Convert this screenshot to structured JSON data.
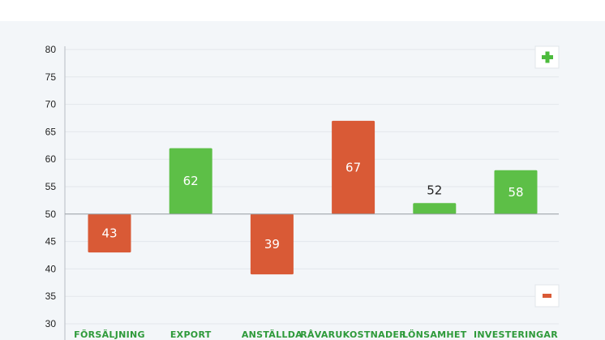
{
  "chart_data": {
    "type": "bar",
    "baseline": 50,
    "ylim": [
      30,
      80
    ],
    "yticks": [
      "80",
      "75",
      "70",
      "65",
      "60",
      "55",
      "50",
      "45",
      "40",
      "35",
      "30"
    ],
    "grid": true,
    "categories": [
      "FÖRSÄLJNING",
      "EXPORT",
      "ANSTÄLLDA",
      "RÅVARUKOSTNADER",
      "LÖNSAMHET",
      "INVESTERINGAR"
    ],
    "values": [
      43,
      62,
      39,
      67,
      52,
      58
    ],
    "value_labels": [
      "43",
      "62",
      "39",
      "67",
      "52",
      "58"
    ],
    "bar_colors": [
      "#d95a36",
      "#5dbf47",
      "#d95a36",
      "#d95a36",
      "#5dbf47",
      "#5dbf47"
    ],
    "category_label_color": "#2e9a3a",
    "legend": {
      "plus_icon": "plus-icon",
      "minus_icon": "minus-icon",
      "plus_color": "#4cbb3c",
      "minus_color": "#d95a36"
    }
  }
}
